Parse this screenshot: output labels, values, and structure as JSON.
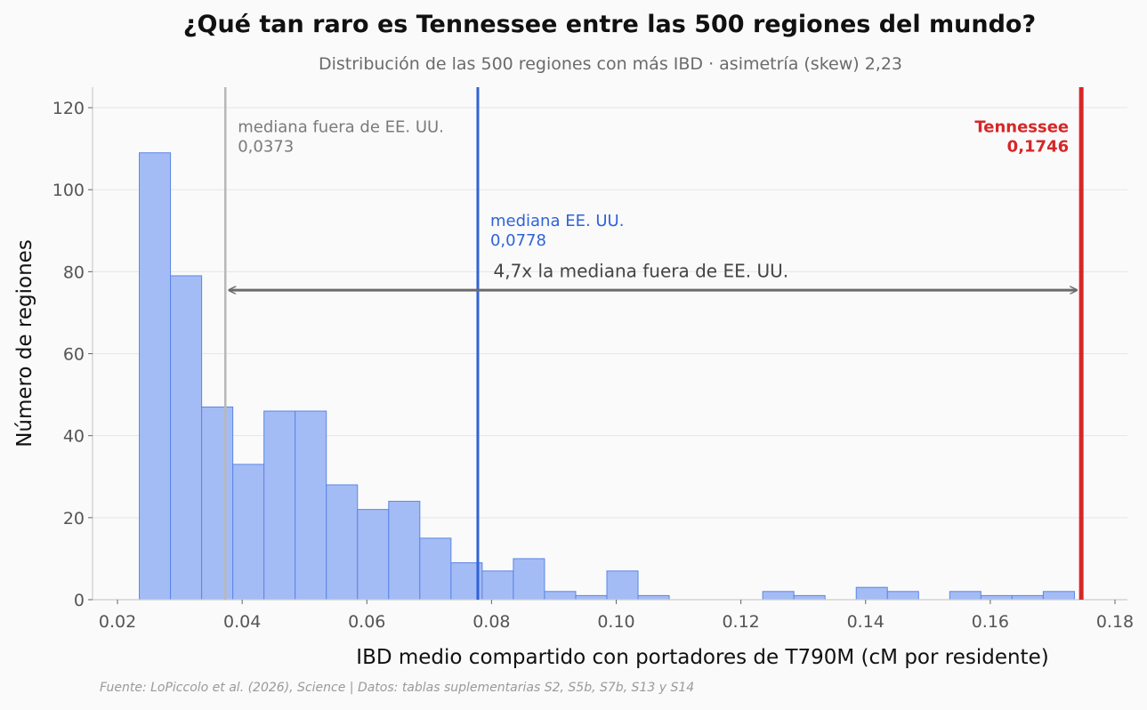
{
  "title": "¿Qué tan raro es Tennessee entre las 500 regiones del mundo?",
  "subtitle": "Distribución de las 500 regiones con más IBD · asimetría (skew) 2,23",
  "source": "Fuente: LoPiccolo et al. (2026), Science | Datos: tablas suplementarias S2, S5b, S7b, S13 y S14",
  "chart_data": {
    "type": "bar",
    "xlabel": "IBD medio compartido con portadores de T790M (cM por residente)",
    "ylabel": "Número de regiones",
    "xlim": [
      0.016,
      0.182
    ],
    "ylim": [
      0,
      125
    ],
    "grid": "horizontal",
    "x_ticks": [
      {
        "v": 0.02,
        "label": "0.02"
      },
      {
        "v": 0.04,
        "label": "0.04"
      },
      {
        "v": 0.06,
        "label": "0.06"
      },
      {
        "v": 0.08,
        "label": "0.08"
      },
      {
        "v": 0.1,
        "label": "0.10"
      },
      {
        "v": 0.12,
        "label": "0.12"
      },
      {
        "v": 0.14,
        "label": "0.14"
      },
      {
        "v": 0.16,
        "label": "0.16"
      },
      {
        "v": 0.18,
        "label": "0.18"
      }
    ],
    "y_ticks": [
      {
        "v": 0,
        "label": "0"
      },
      {
        "v": 20,
        "label": "20"
      },
      {
        "v": 40,
        "label": "40"
      },
      {
        "v": 60,
        "label": "60"
      },
      {
        "v": 80,
        "label": "80"
      },
      {
        "v": 100,
        "label": "100"
      },
      {
        "v": 120,
        "label": "120"
      }
    ],
    "bins": {
      "start": 0.0235,
      "width": 0.005,
      "counts": [
        109,
        79,
        47,
        33,
        46,
        46,
        28,
        22,
        24,
        15,
        9,
        7,
        10,
        2,
        1,
        7,
        1,
        0,
        0,
        0,
        2,
        1,
        0,
        3,
        2,
        0,
        2,
        1,
        1,
        2
      ]
    },
    "bar_color": "#a4bcf5",
    "bar_edge_color": "#5b86e5",
    "reference_lines": [
      {
        "name": "median-outside-us",
        "x": 0.0373,
        "color": "#b8b8b8",
        "label_lines": [
          "mediana fuera de EE. UU.",
          "0,0373"
        ],
        "label_y": 118,
        "align": "start",
        "bold": false
      },
      {
        "name": "median-us",
        "x": 0.0778,
        "color": "#2f63d8",
        "label_lines": [
          "mediana EE. UU.",
          "0,0778"
        ],
        "label_y": 95,
        "align": "start",
        "bold": false
      },
      {
        "name": "tennessee",
        "x": 0.1746,
        "color": "#d62728",
        "label_lines": [
          "Tennessee",
          "0,1746"
        ],
        "label_y": 118,
        "align": "end",
        "bold": true
      }
    ],
    "arrow": {
      "x_from": 0.0373,
      "x_to": 0.1746,
      "y": 75.5,
      "color": "#6b6b6b",
      "label": "4,7x la mediana fuera de EE. UU.",
      "label_x": 0.0803,
      "label_y": 80
    }
  }
}
